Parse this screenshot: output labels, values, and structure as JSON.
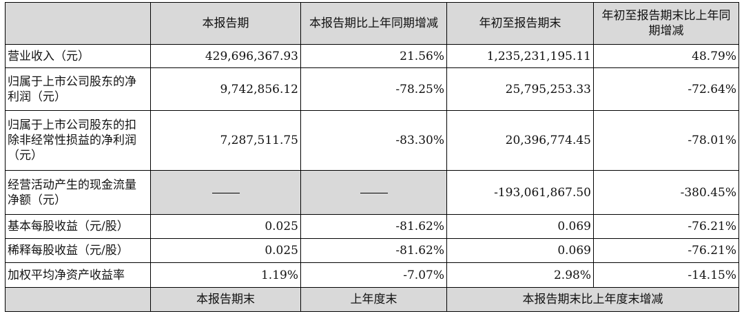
{
  "header": {
    "col1": "本报告期",
    "col2": "本报告期比上年同期增减",
    "col3": "年初至报告期末",
    "col4": "年初至报告期末比上年同期增减"
  },
  "rows": [
    {
      "label": "营业收入（元）",
      "v1": "429,696,367.93",
      "v2": "21.56%",
      "v3": "1,235,231,195.11",
      "v4": "48.79%"
    },
    {
      "label": "归属于上市公司股东的净利润（元）",
      "v1": "9,742,856.12",
      "v2": "-78.25%",
      "v3": "25,795,253.33",
      "v4": "-72.64%"
    },
    {
      "label": "归属于上市公司股东的扣除非经常性损益的净利润（元）",
      "v1": "7,287,511.75",
      "v2": "-83.30%",
      "v3": "20,396,774.45",
      "v4": "-78.01%"
    },
    {
      "label": "经营活动产生的现金流量净额（元）",
      "v1": "——",
      "v2": "——",
      "v3": "-193,061,867.50",
      "v4": "-380.45%"
    },
    {
      "label": "基本每股收益（元/股）",
      "v1": "0.025",
      "v2": "-81.62%",
      "v3": "0.069",
      "v4": "-76.21%"
    },
    {
      "label": "稀释每股收益（元/股）",
      "v1": "0.025",
      "v2": "-81.62%",
      "v3": "0.069",
      "v4": "-76.21%"
    },
    {
      "label": "加权平均净资产收益率",
      "v1": "1.19%",
      "v2": "-7.07%",
      "v3": "2.98%",
      "v4": "-14.15%"
    }
  ],
  "footer": {
    "col1": "本报告期末",
    "col2": "上年度末",
    "col3": "本报告期末比上年度末增减"
  }
}
